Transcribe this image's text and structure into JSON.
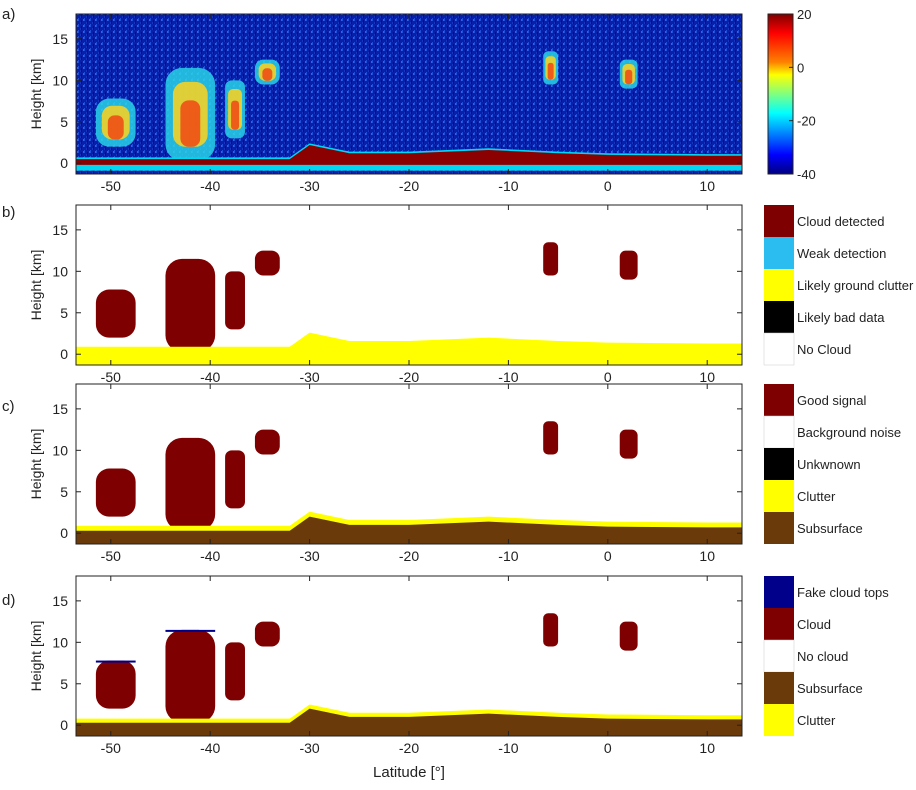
{
  "figure": {
    "xlabel": "Latitude [°]",
    "ylabel": "Height [km]",
    "x_ticks": [
      -50,
      -40,
      -30,
      -20,
      -10,
      0,
      10
    ],
    "y_ticks": [
      0,
      5,
      10,
      15
    ]
  },
  "chart_data": [
    {
      "panel": "a)",
      "type": "heatmap",
      "xlabel": "",
      "ylabel": "Height [km]",
      "xlim": [
        -53.5,
        13.5
      ],
      "ylim": [
        -1.3,
        18
      ],
      "x_ticks": [
        -50,
        -40,
        -30,
        -20,
        -10,
        0,
        10
      ],
      "y_ticks": [
        0,
        5,
        10,
        15
      ],
      "colorbar": {
        "ticks": [
          20,
          0,
          -20,
          -40
        ],
        "range": [
          -40,
          20
        ],
        "colormap": "jet"
      },
      "features": [
        {
          "kind": "surface",
          "x": [
            -53.5,
            -32,
            -30,
            -26,
            -20,
            -12,
            -5,
            0,
            10,
            13.5
          ],
          "top": [
            0.3,
            0.3,
            2.0,
            1.0,
            1.0,
            1.4,
            1.0,
            0.8,
            0.7,
            0.7
          ]
        },
        {
          "kind": "cloud",
          "lat": [
            -51.5,
            -47.5
          ],
          "z": [
            2.0,
            7.8
          ]
        },
        {
          "kind": "cloud",
          "lat": [
            -44.5,
            -39.5
          ],
          "z": [
            0.3,
            11.5
          ]
        },
        {
          "kind": "cloud",
          "lat": [
            -38.5,
            -36.5
          ],
          "z": [
            3.0,
            10.0
          ]
        },
        {
          "kind": "cloud",
          "lat": [
            -35.5,
            -33.0
          ],
          "z": [
            9.5,
            12.5
          ]
        },
        {
          "kind": "cloud",
          "lat": [
            -6.5,
            -5.0
          ],
          "z": [
            9.5,
            13.5
          ]
        },
        {
          "kind": "cloud",
          "lat": [
            1.2,
            3.0
          ],
          "z": [
            9.0,
            12.5
          ]
        }
      ]
    },
    {
      "panel": "b)",
      "type": "heatmap",
      "xlim": [
        -53.5,
        13.5
      ],
      "ylim": [
        -1.3,
        18
      ],
      "ylabel": "Height [km]",
      "legend": [
        {
          "label": "Cloud detected",
          "color": "#7f0000"
        },
        {
          "label": "Weak detection",
          "color": "#2bbdf0"
        },
        {
          "label": "Likely ground clutter",
          "color": "#ffff00"
        },
        {
          "label": "Likely bad data",
          "color": "#000000"
        },
        {
          "label": "No Cloud",
          "color": "#ffffff"
        }
      ]
    },
    {
      "panel": "c)",
      "type": "heatmap",
      "xlim": [
        -53.5,
        13.5
      ],
      "ylim": [
        -1.3,
        18
      ],
      "ylabel": "Height [km]",
      "legend": [
        {
          "label": "Good signal",
          "color": "#7f0000"
        },
        {
          "label": "Background noise",
          "color": "#ffffff"
        },
        {
          "label": "Unkwnown",
          "color": "#000000"
        },
        {
          "label": "Clutter",
          "color": "#ffff00"
        },
        {
          "label": "Subsurface",
          "color": "#6b3a0a"
        }
      ]
    },
    {
      "panel": "d)",
      "type": "heatmap",
      "xlim": [
        -53.5,
        13.5
      ],
      "ylim": [
        -1.3,
        18
      ],
      "ylabel": "Height [km]",
      "xlabel": "Latitude [°]",
      "legend": [
        {
          "label": "Fake cloud tops",
          "color": "#00008b"
        },
        {
          "label": "Cloud",
          "color": "#7f0000"
        },
        {
          "label": "No cloud",
          "color": "#ffffff"
        },
        {
          "label": "Subsurface",
          "color": "#6b3a0a"
        },
        {
          "label": "Clutter",
          "color": "#ffff00"
        }
      ]
    }
  ]
}
